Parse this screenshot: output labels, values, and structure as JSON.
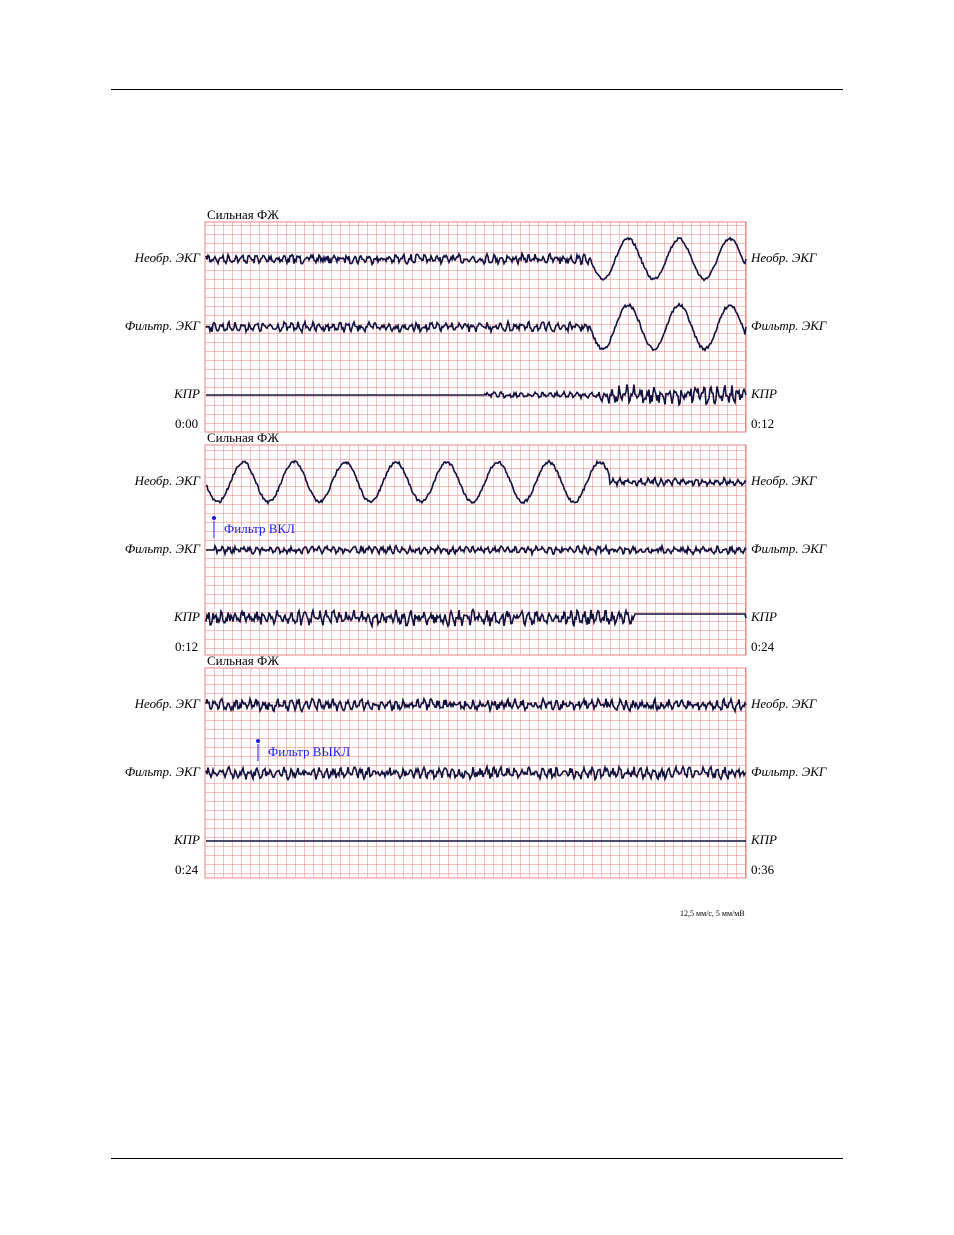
{
  "strips": [
    {
      "title": "Сильная ФЖ",
      "leads": [
        {
          "left": "Необр. ЭКГ",
          "right": "Необр. ЭКГ"
        },
        {
          "left": "Фильтр. ЭКГ",
          "right": "Фильтр. ЭКГ"
        },
        {
          "left": "КПР",
          "right": "КПР"
        }
      ],
      "start": "0:00",
      "end": "0:12"
    },
    {
      "title": "Сильная ФЖ",
      "leads": [
        {
          "left": "Необр. ЭКГ",
          "right": "Необр. ЭКГ"
        },
        {
          "left": "Фильтр. ЭКГ",
          "right": "Фильтр. ЭКГ"
        },
        {
          "left": "КПР",
          "right": "КПР"
        }
      ],
      "start": "0:12",
      "end": "0:24",
      "annotation": "Фильтр ВКЛ"
    },
    {
      "title": "Сильная ФЖ",
      "leads": [
        {
          "left": "Необр. ЭКГ",
          "right": "Необр. ЭКГ"
        },
        {
          "left": "Фильтр. ЭКГ",
          "right": "Фильтр. ЭКГ"
        },
        {
          "left": "КПР",
          "right": "КПР"
        }
      ],
      "start": "0:24",
      "end": "0:36",
      "annotation": "Фильтр ВЫКЛ"
    }
  ],
  "footer": "12,5 мм/с, 5 мм/мВ"
}
